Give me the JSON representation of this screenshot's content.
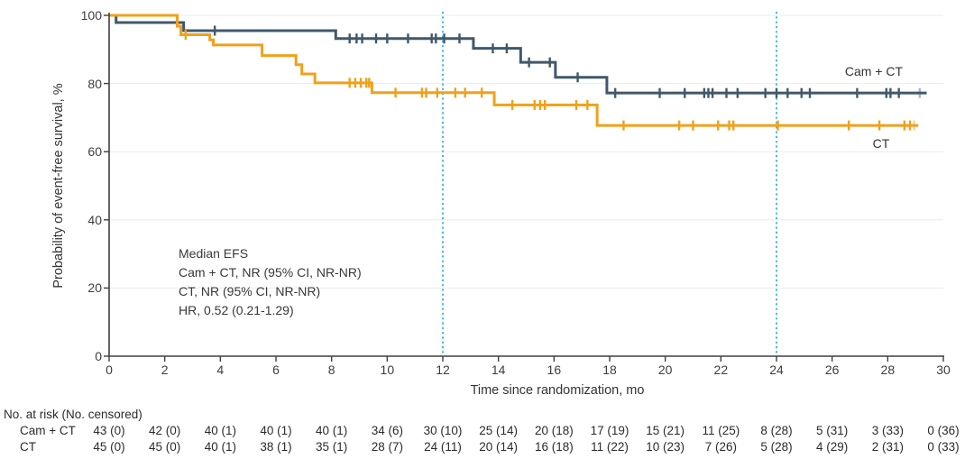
{
  "chart_data": {
    "type": "line",
    "subtype": "kaplan-meier-step",
    "title": "",
    "xlabel": "Time since randomization, mo",
    "ylabel": "Probability of event-free survival, %",
    "xlim": [
      0,
      30
    ],
    "ylim": [
      0,
      100
    ],
    "xticks": [
      0,
      2,
      4,
      6,
      8,
      10,
      12,
      14,
      16,
      18,
      20,
      22,
      24,
      26,
      28,
      30
    ],
    "yticks": [
      0,
      20,
      40,
      60,
      80,
      100
    ],
    "grid": "horizontal",
    "reference_lines_x": [
      12,
      24
    ],
    "colors": {
      "camct": "#41586a",
      "ct": "#f0a11a",
      "reference_line": "#45b8e8",
      "grid": "#ebebeb",
      "axis": "#3f3f3f",
      "text": "#333333"
    },
    "series": [
      {
        "name": "Cam + CT",
        "color": "#41586a",
        "start": [
          0,
          100
        ],
        "steps": [
          [
            0.25,
            97.9
          ],
          [
            2.68,
            95.5
          ],
          [
            8.15,
            93.2
          ],
          [
            13.1,
            90.3
          ],
          [
            14.8,
            86.2
          ],
          [
            16.05,
            81.8
          ],
          [
            17.9,
            77.2
          ]
        ],
        "end_x": 29.4,
        "censor_x": [
          3.8,
          8.65,
          8.9,
          9.1,
          9.6,
          10.0,
          10.75,
          11.6,
          11.75,
          12.05,
          12.6,
          13.8,
          14.3,
          15.1,
          15.85,
          16.85,
          18.2,
          19.8,
          20.7,
          21.4,
          21.55,
          21.7,
          22.2,
          22.6,
          23.6,
          24.0,
          24.4,
          24.9,
          25.2,
          26.9,
          27.95,
          28.1,
          28.4
        ],
        "final_censor_x": 29.15
      },
      {
        "name": "CT",
        "color": "#f0a11a",
        "start": [
          0,
          100
        ],
        "steps": [
          [
            2.45,
            96.8
          ],
          [
            2.58,
            94.3
          ],
          [
            3.62,
            92.8
          ],
          [
            3.75,
            91.3
          ],
          [
            5.5,
            88.2
          ],
          [
            6.72,
            85.5
          ],
          [
            6.93,
            82.8
          ],
          [
            7.4,
            80.2
          ],
          [
            9.45,
            77.3
          ],
          [
            13.85,
            73.7
          ],
          [
            17.55,
            67.7
          ]
        ],
        "end_x": 29.1,
        "censor_x": [
          2.75,
          8.65,
          8.85,
          9.05,
          9.25,
          9.35,
          10.3,
          11.25,
          11.4,
          11.8,
          12.45,
          12.8,
          13.4,
          14.5,
          15.3,
          15.5,
          15.67,
          16.8,
          17.2,
          18.5,
          20.5,
          21.0,
          21.9,
          22.3,
          22.45,
          24.05,
          26.6,
          27.7,
          28.6,
          28.8
        ],
        "final_censor_x": 28.95
      }
    ],
    "annotation": [
      "Median EFS",
      "Cam + CT, NR (95% CI, NR-NR)",
      "CT, NR (95% CI, NR-NR)",
      "HR, 0.52 (0.21-1.29)"
    ],
    "risk_table": {
      "header": "No. at risk (No. censored)",
      "time_points": [
        0,
        2,
        4,
        6,
        8,
        10,
        12,
        14,
        16,
        18,
        20,
        22,
        24,
        26,
        28,
        30
      ],
      "rows": [
        {
          "label": "Cam + CT",
          "values": [
            "43 (0)",
            "42 (0)",
            "40 (1)",
            "40 (1)",
            "40 (1)",
            "34 (6)",
            "30 (10)",
            "25 (14)",
            "20 (18)",
            "17 (19)",
            "15 (21)",
            "11 (25)",
            "8 (28)",
            "5 (31)",
            "3 (33)",
            "0 (36)"
          ]
        },
        {
          "label": "CT",
          "values": [
            "45 (0)",
            "45 (0)",
            "40 (1)",
            "38 (1)",
            "35 (1)",
            "28 (7)",
            "24 (11)",
            "20 (14)",
            "16 (18)",
            "11 (22)",
            "10 (23)",
            "7 (26)",
            "5 (28)",
            "4 (29)",
            "2 (31)",
            "0 (33)"
          ]
        }
      ]
    }
  }
}
